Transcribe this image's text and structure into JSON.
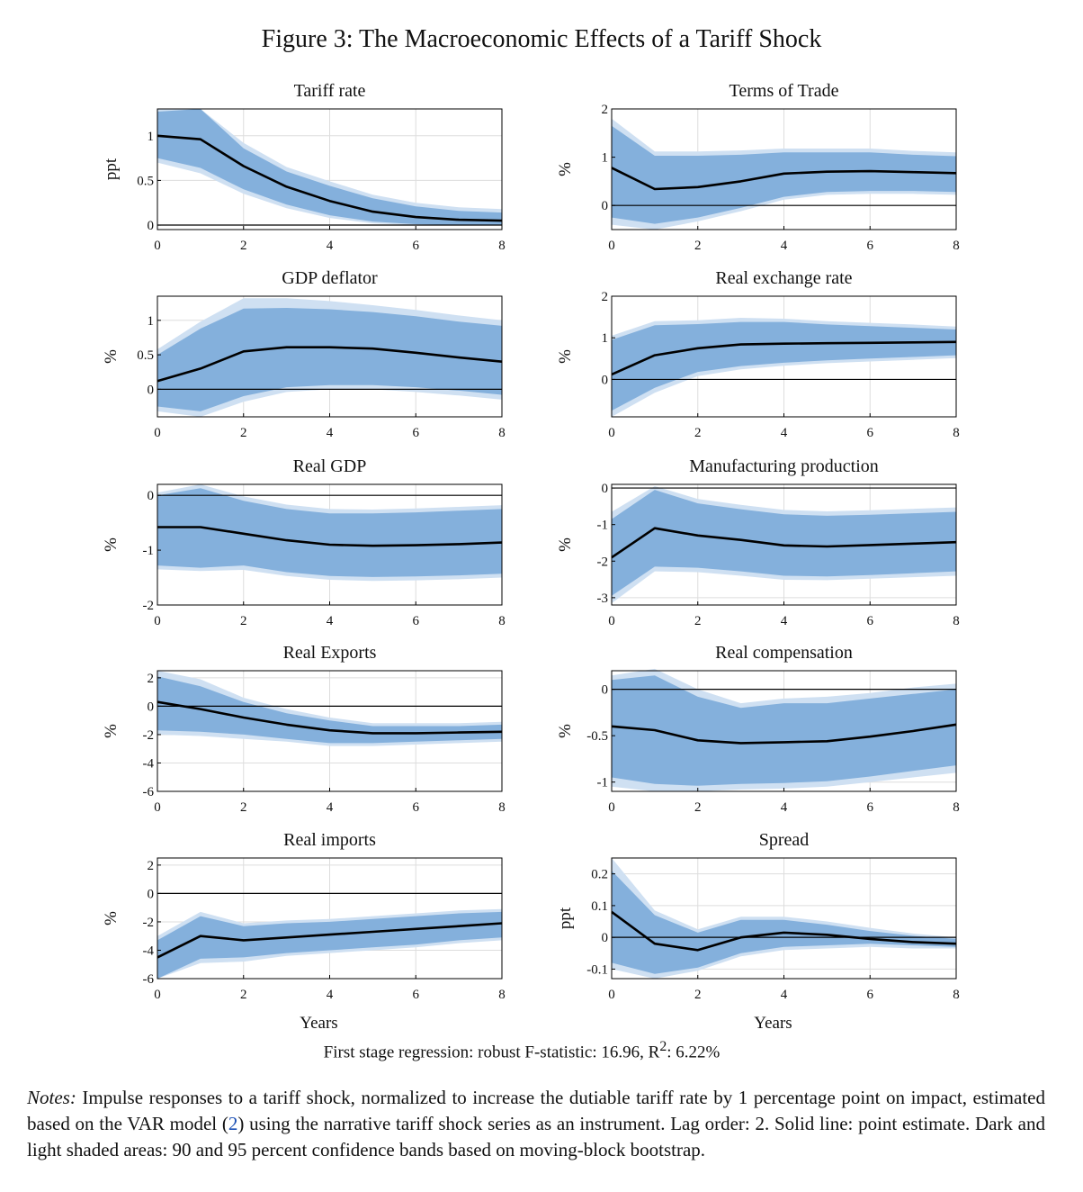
{
  "figure_title": "Figure 3: The Macroeconomic Effects of a Tariff Shock",
  "first_stage": {
    "prefix": "First stage regression: robust F-statistic: 16.96, R",
    "sup": "2",
    "suffix": ": 6.22%"
  },
  "notes": {
    "lead": "Notes:",
    "text_before_ref": " Impulse responses to a tariff shock, normalized to increase the dutiable tariff rate by 1 percentage point on impact, estimated based on the VAR model (",
    "ref": "2",
    "text_after_ref": ") using the narrative tariff shock series as an instrument. Lag order: 2. Solid line: point estimate. Dark and light shaded areas: 90 and 95 percent confidence bands based on moving-block bootstrap."
  },
  "colors": {
    "band90": "#84b0dc",
    "band95": "#cfe0f2",
    "line": "#000000",
    "grid": "#dddddd",
    "axis": "#000000"
  },
  "chart_data": [
    {
      "type": "line",
      "title": "Tariff rate",
      "ylabel": "ppt",
      "xlabel": "",
      "xlim": [
        0,
        8
      ],
      "ylim": [
        -0.05,
        1.3
      ],
      "xticks": [
        0,
        2,
        4,
        6,
        8
      ],
      "yticks": [
        0,
        0.5,
        1
      ],
      "ytick_labels": [
        "0",
        "0.5",
        "1"
      ],
      "x": [
        0,
        1,
        2,
        3,
        4,
        5,
        6,
        7,
        8
      ],
      "y": [
        1,
        0.96,
        0.66,
        0.43,
        0.27,
        0.15,
        0.09,
        0.06,
        0.05
      ],
      "ci90": {
        "lo": [
          0.75,
          0.64,
          0.4,
          0.23,
          0.11,
          0.04,
          0.01,
          0.0,
          0.0
        ],
        "hi": [
          1.27,
          1.3,
          0.86,
          0.6,
          0.44,
          0.3,
          0.21,
          0.16,
          0.14
        ]
      },
      "ci95": {
        "lo": [
          0.7,
          0.58,
          0.35,
          0.19,
          0.08,
          0.02,
          0.0,
          0.0,
          0.0
        ],
        "hi": [
          1.3,
          1.3,
          0.92,
          0.65,
          0.49,
          0.34,
          0.25,
          0.2,
          0.18
        ]
      }
    },
    {
      "type": "line",
      "title": "Terms of Trade",
      "ylabel": "%",
      "xlabel": "",
      "xlim": [
        0,
        8
      ],
      "ylim": [
        -0.5,
        2
      ],
      "xticks": [
        0,
        2,
        4,
        6,
        8
      ],
      "yticks": [
        0,
        1,
        2
      ],
      "ytick_labels": [
        "0",
        "1",
        "2"
      ],
      "x": [
        0,
        1,
        2,
        3,
        4,
        5,
        6,
        7,
        8
      ],
      "y": [
        0.78,
        0.34,
        0.38,
        0.5,
        0.66,
        0.7,
        0.71,
        0.69,
        0.67
      ],
      "ci90": {
        "lo": [
          -0.25,
          -0.38,
          -0.25,
          -0.05,
          0.18,
          0.28,
          0.3,
          0.3,
          0.28
        ],
        "hi": [
          1.65,
          1.03,
          1.03,
          1.05,
          1.1,
          1.1,
          1.1,
          1.05,
          1.02
        ]
      },
      "ci95": {
        "lo": [
          -0.4,
          -0.5,
          -0.33,
          -0.12,
          0.12,
          0.22,
          0.24,
          0.24,
          0.22
        ],
        "hi": [
          1.8,
          1.12,
          1.12,
          1.14,
          1.18,
          1.18,
          1.18,
          1.13,
          1.1
        ]
      }
    },
    {
      "type": "line",
      "title": "GDP deflator",
      "ylabel": "%",
      "xlabel": "",
      "xlim": [
        0,
        8
      ],
      "ylim": [
        -0.4,
        1.35
      ],
      "xticks": [
        0,
        2,
        4,
        6,
        8
      ],
      "yticks": [
        0,
        0.5,
        1
      ],
      "ytick_labels": [
        "0",
        "0.5",
        "1"
      ],
      "x": [
        0,
        1,
        2,
        3,
        4,
        5,
        6,
        7,
        8
      ],
      "y": [
        0.12,
        0.3,
        0.55,
        0.61,
        0.61,
        0.59,
        0.53,
        0.46,
        0.4
      ],
      "ci90": {
        "lo": [
          -0.25,
          -0.32,
          -0.1,
          0.03,
          0.06,
          0.06,
          0.03,
          -0.02,
          -0.08
        ],
        "hi": [
          0.5,
          0.88,
          1.17,
          1.18,
          1.16,
          1.12,
          1.06,
          0.98,
          0.92
        ]
      },
      "ci95": {
        "lo": [
          -0.32,
          -0.4,
          -0.18,
          -0.04,
          0.0,
          0.0,
          -0.04,
          -0.09,
          -0.15
        ],
        "hi": [
          0.58,
          0.98,
          1.32,
          1.32,
          1.28,
          1.22,
          1.15,
          1.07,
          1.0
        ]
      }
    },
    {
      "type": "line",
      "title": "Real exchange rate",
      "ylabel": "%",
      "xlabel": "",
      "xlim": [
        0,
        8
      ],
      "ylim": [
        -0.9,
        2
      ],
      "xticks": [
        0,
        2,
        4,
        6,
        8
      ],
      "yticks": [
        0,
        1,
        2
      ],
      "ytick_labels": [
        "0",
        "1",
        "2"
      ],
      "x": [
        0,
        1,
        2,
        3,
        4,
        5,
        6,
        7,
        8
      ],
      "y": [
        0.12,
        0.58,
        0.75,
        0.84,
        0.86,
        0.87,
        0.88,
        0.89,
        0.9
      ],
      "ci90": {
        "lo": [
          -0.75,
          -0.2,
          0.18,
          0.32,
          0.4,
          0.46,
          0.5,
          0.54,
          0.58
        ],
        "hi": [
          0.95,
          1.3,
          1.33,
          1.38,
          1.38,
          1.32,
          1.28,
          1.24,
          1.2
        ]
      },
      "ci95": {
        "lo": [
          -0.9,
          -0.32,
          0.08,
          0.24,
          0.33,
          0.39,
          0.43,
          0.47,
          0.51
        ],
        "hi": [
          1.05,
          1.4,
          1.42,
          1.48,
          1.46,
          1.4,
          1.36,
          1.32,
          1.27
        ]
      }
    },
    {
      "type": "line",
      "title": "Real GDP",
      "ylabel": "%",
      "xlabel": "",
      "xlim": [
        0,
        8
      ],
      "ylim": [
        -2,
        0.2
      ],
      "xticks": [
        0,
        2,
        4,
        6,
        8
      ],
      "yticks": [
        -2,
        -1,
        0
      ],
      "ytick_labels": [
        "-2",
        "-1",
        "0"
      ],
      "x": [
        0,
        1,
        2,
        3,
        4,
        5,
        6,
        7,
        8
      ],
      "y": [
        -0.58,
        -0.58,
        -0.7,
        -0.82,
        -0.9,
        -0.92,
        -0.91,
        -0.89,
        -0.86
      ],
      "ci90": {
        "lo": [
          -1.28,
          -1.32,
          -1.28,
          -1.4,
          -1.47,
          -1.49,
          -1.48,
          -1.46,
          -1.43
        ],
        "hi": [
          0.0,
          0.13,
          -0.1,
          -0.25,
          -0.33,
          -0.33,
          -0.31,
          -0.28,
          -0.25
        ]
      },
      "ci95": {
        "lo": [
          -1.35,
          -1.38,
          -1.36,
          -1.47,
          -1.54,
          -1.56,
          -1.55,
          -1.53,
          -1.5
        ],
        "hi": [
          0.05,
          0.2,
          -0.02,
          -0.17,
          -0.25,
          -0.26,
          -0.24,
          -0.21,
          -0.18
        ]
      }
    },
    {
      "type": "line",
      "title": "Manufacturing production",
      "ylabel": "%",
      "xlabel": "",
      "xlim": [
        0,
        8
      ],
      "ylim": [
        -3.2,
        0.1
      ],
      "xticks": [
        0,
        2,
        4,
        6,
        8
      ],
      "yticks": [
        -3,
        -2,
        -1,
        0
      ],
      "ytick_labels": [
        "-3",
        "-2",
        "-1",
        "0"
      ],
      "x": [
        0,
        1,
        2,
        3,
        4,
        5,
        6,
        7,
        8
      ],
      "y": [
        -1.9,
        -1.1,
        -1.3,
        -1.42,
        -1.57,
        -1.6,
        -1.56,
        -1.52,
        -1.48
      ],
      "ci90": {
        "lo": [
          -2.95,
          -2.15,
          -2.18,
          -2.28,
          -2.4,
          -2.42,
          -2.38,
          -2.33,
          -2.28
        ],
        "hi": [
          -0.85,
          -0.05,
          -0.42,
          -0.58,
          -0.72,
          -0.76,
          -0.73,
          -0.69,
          -0.65
        ]
      },
      "ci95": {
        "lo": [
          -3.15,
          -2.28,
          -2.3,
          -2.4,
          -2.51,
          -2.52,
          -2.48,
          -2.44,
          -2.4
        ],
        "hi": [
          -0.65,
          0.05,
          -0.3,
          -0.46,
          -0.6,
          -0.64,
          -0.61,
          -0.57,
          -0.53
        ]
      }
    },
    {
      "type": "line",
      "title": "Real Exports",
      "ylabel": "%",
      "xlabel": "",
      "xlim": [
        0,
        8
      ],
      "ylim": [
        -6,
        2.5
      ],
      "xticks": [
        0,
        2,
        4,
        6,
        8
      ],
      "yticks": [
        -6,
        -4,
        -2,
        0,
        2
      ],
      "ytick_labels": [
        "-6",
        "-4",
        "-2",
        "0",
        "2"
      ],
      "x": [
        0,
        1,
        2,
        3,
        4,
        5,
        6,
        7,
        8
      ],
      "y": [
        0.3,
        -0.2,
        -0.8,
        -1.3,
        -1.7,
        -1.9,
        -1.9,
        -1.85,
        -1.8
      ],
      "ci90": {
        "lo": [
          -1.7,
          -1.8,
          -2.0,
          -2.3,
          -2.6,
          -2.6,
          -2.5,
          -2.4,
          -2.3
        ],
        "hi": [
          2.1,
          1.4,
          0.3,
          -0.5,
          -1.0,
          -1.4,
          -1.4,
          -1.4,
          -1.3
        ]
      },
      "ci95": {
        "lo": [
          -2.0,
          -2.1,
          -2.3,
          -2.5,
          -2.8,
          -2.8,
          -2.7,
          -2.6,
          -2.5
        ],
        "hi": [
          2.5,
          1.9,
          0.6,
          -0.2,
          -0.8,
          -1.2,
          -1.2,
          -1.2,
          -1.1
        ]
      }
    },
    {
      "type": "line",
      "title": "Real compensation",
      "ylabel": "%",
      "xlabel": "",
      "xlim": [
        0,
        8
      ],
      "ylim": [
        -1.1,
        0.2
      ],
      "xticks": [
        0,
        2,
        4,
        6,
        8
      ],
      "yticks": [
        -1,
        -0.5,
        0
      ],
      "ytick_labels": [
        "-1",
        "-0.5",
        "0"
      ],
      "x": [
        0,
        1,
        2,
        3,
        4,
        5,
        6,
        7,
        8
      ],
      "y": [
        -0.4,
        -0.44,
        -0.55,
        -0.58,
        -0.57,
        -0.56,
        -0.51,
        -0.45,
        -0.38
      ],
      "ci90": {
        "lo": [
          -0.95,
          -1.02,
          -1.04,
          -1.02,
          -1.01,
          -0.99,
          -0.94,
          -0.88,
          -0.82
        ],
        "hi": [
          0.1,
          0.15,
          -0.08,
          -0.2,
          -0.15,
          -0.15,
          -0.1,
          -0.05,
          0.0
        ],
        "note": ""
      },
      "ci95": {
        "lo": [
          -1.05,
          -1.1,
          -1.1,
          -1.08,
          -1.07,
          -1.05,
          -1.0,
          -0.95,
          -0.9
        ],
        "hi": [
          0.15,
          0.22,
          0.0,
          -0.15,
          -0.1,
          -0.08,
          -0.04,
          0.02,
          0.06
        ]
      }
    },
    {
      "type": "line",
      "title": "Real imports",
      "ylabel": "%",
      "xlabel": "Years",
      "xlim": [
        0,
        8
      ],
      "ylim": [
        -6,
        2.5
      ],
      "xticks": [
        0,
        2,
        4,
        6,
        8
      ],
      "yticks": [
        -6,
        -4,
        -2,
        0,
        2
      ],
      "ytick_labels": [
        "-6",
        "-4",
        "-2",
        "0",
        "2"
      ],
      "x": [
        0,
        1,
        2,
        3,
        4,
        5,
        6,
        7,
        8
      ],
      "y": [
        -4.5,
        -3.0,
        -3.3,
        -3.1,
        -2.9,
        -2.7,
        -2.5,
        -2.3,
        -2.1
      ],
      "ci90": {
        "lo": [
          -6.0,
          -4.6,
          -4.5,
          -4.2,
          -4.0,
          -3.8,
          -3.6,
          -3.3,
          -3.1
        ],
        "hi": [
          -3.3,
          -1.6,
          -2.3,
          -2.1,
          -2.0,
          -1.8,
          -1.6,
          -1.4,
          -1.3
        ]
      },
      "ci95": {
        "lo": [
          -6.0,
          -4.9,
          -4.8,
          -4.4,
          -4.2,
          -4.0,
          -3.8,
          -3.5,
          -3.3
        ],
        "hi": [
          -3.0,
          -1.3,
          -2.1,
          -1.9,
          -1.8,
          -1.6,
          -1.4,
          -1.2,
          -1.1
        ]
      }
    },
    {
      "type": "line",
      "title": "Spread",
      "ylabel": "ppt",
      "xlabel": "Years",
      "xlim": [
        0,
        8
      ],
      "ylim": [
        -0.13,
        0.25
      ],
      "xticks": [
        0,
        2,
        4,
        6,
        8
      ],
      "yticks": [
        -0.1,
        0,
        0.1,
        0.2
      ],
      "ytick_labels": [
        "-0.1",
        "0",
        "0.1",
        "0.2"
      ],
      "x": [
        0,
        1,
        2,
        3,
        4,
        5,
        6,
        7,
        8
      ],
      "y": [
        0.08,
        -0.02,
        -0.04,
        0.0,
        0.015,
        0.008,
        -0.005,
        -0.015,
        -0.02
      ],
      "ci90": {
        "lo": [
          -0.08,
          -0.115,
          -0.095,
          -0.05,
          -0.03,
          -0.025,
          -0.02,
          -0.025,
          -0.03
        ],
        "hi": [
          0.21,
          0.07,
          0.015,
          0.055,
          0.055,
          0.04,
          0.02,
          0.005,
          -0.005
        ]
      },
      "ci95": {
        "lo": [
          -0.1,
          -0.13,
          -0.105,
          -0.06,
          -0.04,
          -0.035,
          -0.03,
          -0.035,
          -0.035
        ],
        "hi": [
          0.25,
          0.085,
          0.025,
          0.065,
          0.065,
          0.05,
          0.03,
          0.012,
          0.0
        ]
      }
    }
  ]
}
